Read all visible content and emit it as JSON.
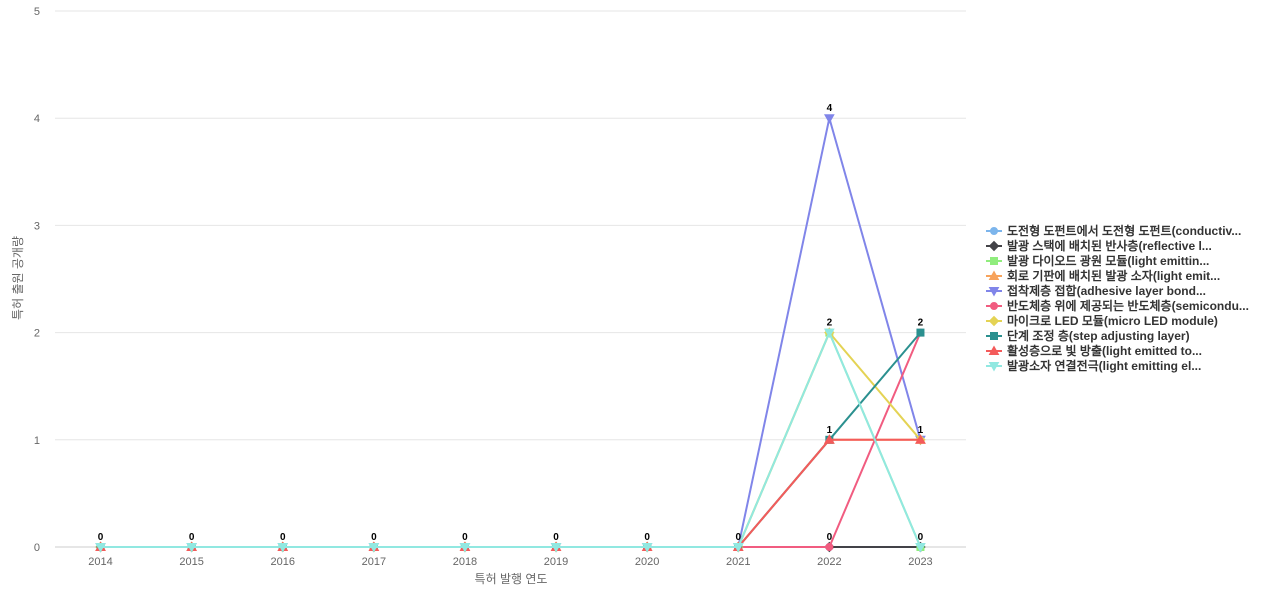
{
  "chart_data": {
    "type": "line",
    "title": "",
    "xlabel": "특허 발행 연도",
    "ylabel": "특허 출원 공개량",
    "x": [
      "2014",
      "2015",
      "2016",
      "2017",
      "2018",
      "2019",
      "2020",
      "2021",
      "2022",
      "2023"
    ],
    "ylim": [
      0,
      5
    ],
    "yticks": [
      0,
      1,
      2,
      3,
      4,
      5
    ],
    "grid": true,
    "legend_position": "right",
    "series": [
      {
        "name": "도전형 도펀트에서 도전형 도펀트(conductiv...",
        "color": "#7cb5ec",
        "marker": "circle",
        "values": [
          0,
          0,
          0,
          0,
          0,
          0,
          0,
          0,
          0,
          0
        ]
      },
      {
        "name": "발광 스택에 배치된 반사층(reflective l...",
        "color": "#434348",
        "marker": "diamond",
        "values": [
          0,
          0,
          0,
          0,
          0,
          0,
          0,
          0,
          0,
          0
        ]
      },
      {
        "name": "발광 다이오드 광원 모듈(light emittin...",
        "color": "#90ed7d",
        "marker": "square",
        "values": [
          0,
          0,
          0,
          0,
          0,
          0,
          0,
          0,
          2,
          0
        ]
      },
      {
        "name": "회로 기판에 배치된 발광 소자(light emit...",
        "color": "#f7a35c",
        "marker": "triangle",
        "values": [
          0,
          0,
          0,
          0,
          0,
          0,
          0,
          0,
          1,
          1
        ]
      },
      {
        "name": "접착제층 접합(adhesive layer bond...",
        "color": "#8085e9",
        "marker": "triangle-down",
        "values": [
          0,
          0,
          0,
          0,
          0,
          0,
          0,
          0,
          4,
          1
        ]
      },
      {
        "name": "반도체층 위에 제공되는 반도체층(semicondu...",
        "color": "#f15c80",
        "marker": "circle",
        "values": [
          0,
          0,
          0,
          0,
          0,
          0,
          0,
          0,
          0,
          2
        ]
      },
      {
        "name": "마이크로 LED 모듈(micro LED module)",
        "color": "#e4d354",
        "marker": "diamond",
        "values": [
          0,
          0,
          0,
          0,
          0,
          0,
          0,
          0,
          2,
          1
        ]
      },
      {
        "name": "단계 조정 층(step adjusting layer)",
        "color": "#2b908f",
        "marker": "square",
        "values": [
          0,
          0,
          0,
          0,
          0,
          0,
          0,
          0,
          1,
          2
        ]
      },
      {
        "name": "활성층으로 빛 방출(light emitted to...",
        "color": "#f45b5b",
        "marker": "triangle",
        "values": [
          0,
          0,
          0,
          0,
          0,
          0,
          0,
          0,
          1,
          1
        ]
      },
      {
        "name": "발광소자 연결전극(light emitting el...",
        "color": "#91e8e1",
        "marker": "triangle-down",
        "values": [
          0,
          0,
          0,
          0,
          0,
          0,
          0,
          0,
          2,
          0
        ]
      }
    ],
    "data_labels": [
      {
        "x": "2014",
        "y": 0,
        "text": "0"
      },
      {
        "x": "2015",
        "y": 0,
        "text": "0"
      },
      {
        "x": "2016",
        "y": 0,
        "text": "0"
      },
      {
        "x": "2017",
        "y": 0,
        "text": "0"
      },
      {
        "x": "2018",
        "y": 0,
        "text": "0"
      },
      {
        "x": "2019",
        "y": 0,
        "text": "0"
      },
      {
        "x": "2020",
        "y": 0,
        "text": "0"
      },
      {
        "x": "2021",
        "y": 0,
        "text": "0"
      },
      {
        "x": "2022",
        "y": 4,
        "text": "4"
      },
      {
        "x": "2022",
        "y": 2,
        "text": "2"
      },
      {
        "x": "2022",
        "y": 1,
        "text": "1"
      },
      {
        "x": "2022",
        "y": 0,
        "text": "0"
      },
      {
        "x": "2023",
        "y": 2,
        "text": "2"
      },
      {
        "x": "2023",
        "y": 1,
        "text": "1"
      },
      {
        "x": "2023",
        "y": 0,
        "text": "0"
      }
    ]
  }
}
